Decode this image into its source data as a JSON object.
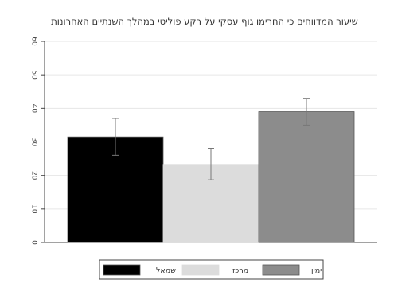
{
  "chart_data": {
    "type": "bar",
    "title": "שיעור המדווחים כי החרימו גוף עסקי על רקע פוליטי במהלך השנתיים האחרונות",
    "xlabel": "",
    "ylabel": "",
    "ylim": [
      0,
      60
    ],
    "yticks": [
      0,
      10,
      20,
      30,
      40,
      50,
      60
    ],
    "grid": true,
    "legend_position": "bottom",
    "categories": [
      "שמאל",
      "מרכז",
      "ימין"
    ],
    "values": [
      31.5,
      23.3,
      39
    ],
    "error_low": [
      26,
      18.7,
      35
    ],
    "error_high": [
      37,
      28.1,
      43
    ],
    "colors": [
      "#000000",
      "#dcdcdc",
      "#8c8c8c"
    ]
  }
}
